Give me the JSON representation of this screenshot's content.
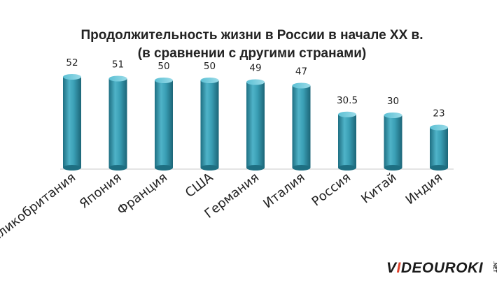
{
  "title": {
    "line1": "Продолжительность жизни в России в начале XX в.",
    "line2": "(в сравнении с другими странами)"
  },
  "chart_data": {
    "type": "bar",
    "categories": [
      "Великобритания",
      "Япония",
      "Франция",
      "США",
      "Германия",
      "Италия",
      "Россия",
      "Китай",
      "Индия"
    ],
    "values": [
      52,
      51,
      50,
      50,
      49,
      47,
      30.5,
      30,
      23
    ],
    "value_labels": [
      "52",
      "51",
      "50",
      "50",
      "49",
      "47",
      "30.5",
      "30",
      "23"
    ],
    "ylim": [
      0,
      56
    ],
    "grid": false,
    "legend": "none",
    "bar_color": "#3a9fb5"
  },
  "logo": {
    "prefix": "V",
    "accent": "I",
    "main": "DEOUROKI",
    "suffix": ".NET"
  },
  "colors": {
    "bar_light": "#7fd0e0",
    "bar_mid": "#3a9fb5",
    "bar_dark": "#1e6f82",
    "accent": "#e0422c"
  }
}
